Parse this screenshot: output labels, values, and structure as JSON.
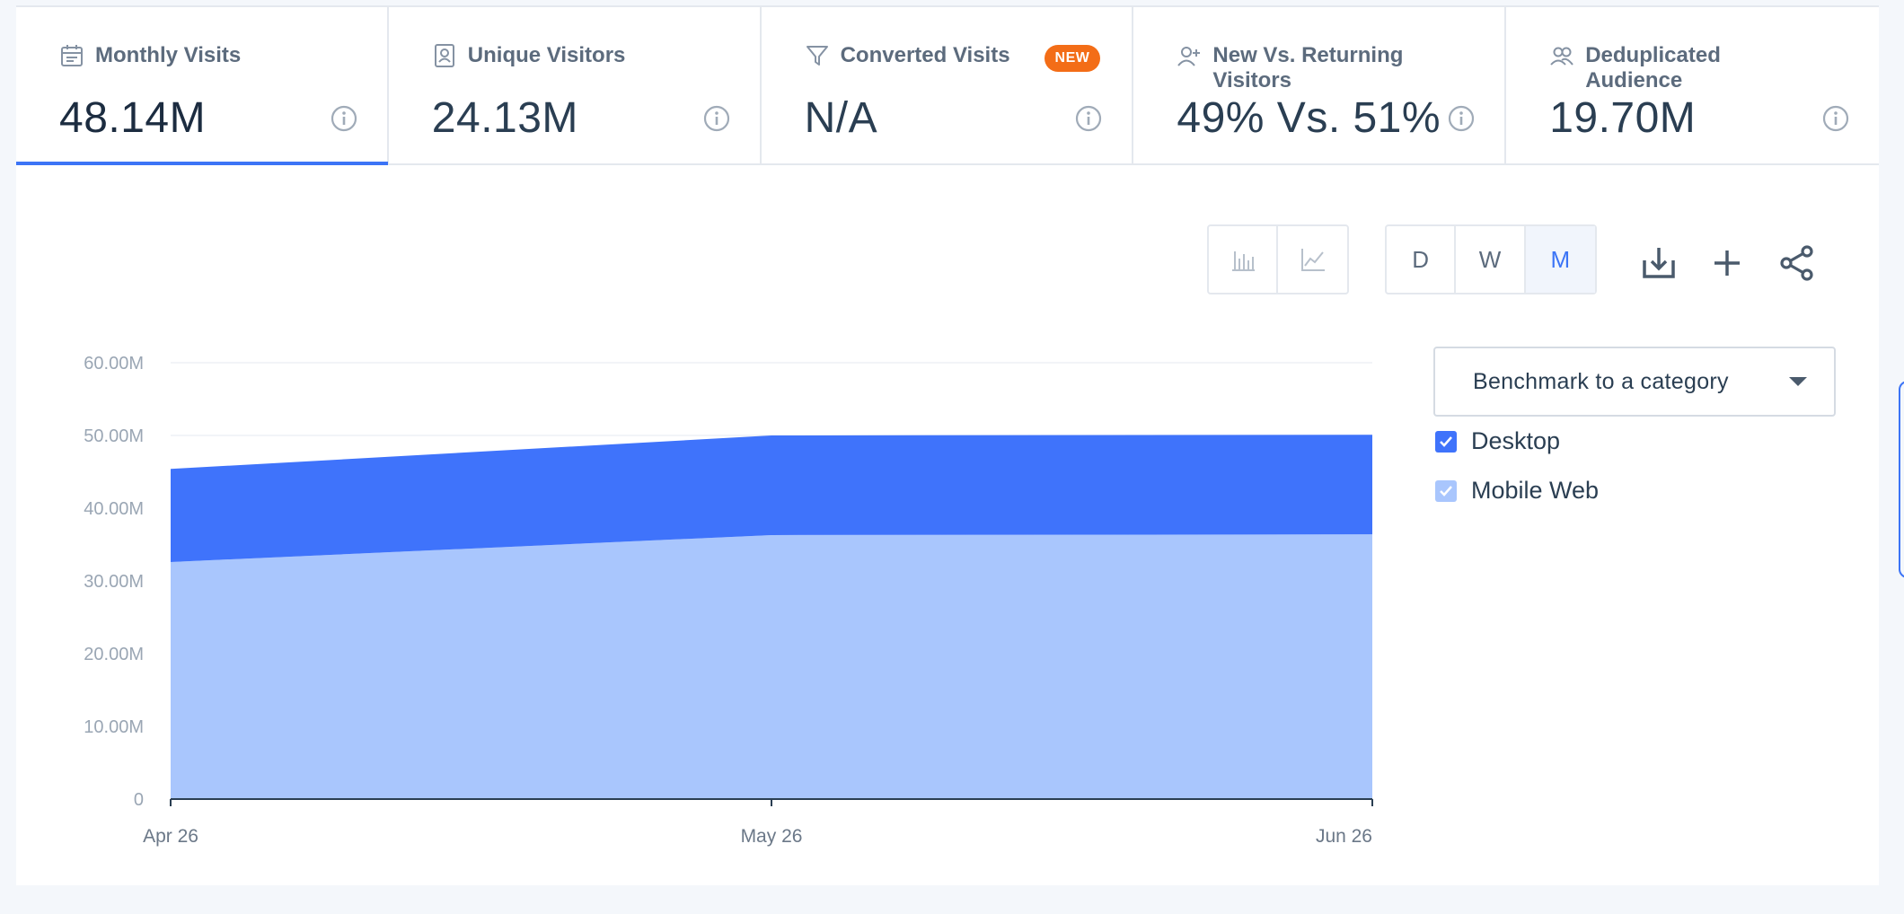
{
  "metrics": [
    {
      "label": "Monthly Visits",
      "value": "48.14M",
      "icon": "calendar-icon",
      "active": true
    },
    {
      "label": "Unique Visitors",
      "value": "24.13M",
      "icon": "id-badge-icon"
    },
    {
      "label": "Converted Visits",
      "value": "N/A",
      "icon": "funnel-icon",
      "badge": "NEW"
    },
    {
      "label": "New Vs. Returning Visitors",
      "value": "49% Vs. 51%",
      "icon": "user-plus-icon"
    },
    {
      "label": "Deduplicated Audience",
      "value": "19.70M",
      "icon": "users-icon"
    }
  ],
  "toolbar": {
    "chart_types": [
      "bar-chart-icon",
      "line-chart-icon"
    ],
    "granularity": [
      "D",
      "W",
      "M"
    ],
    "granularity_selected": "M",
    "actions": [
      "download-icon",
      "add-icon",
      "share-icon"
    ]
  },
  "benchmark": {
    "label": "Benchmark to a category"
  },
  "legend": [
    {
      "label": "Desktop",
      "color": "#3f73fb"
    },
    {
      "label": "Mobile Web",
      "color": "#a9c6fd"
    }
  ],
  "colors": {
    "accent": "#3c74f6",
    "badge": "#f36d17"
  },
  "chart_data": {
    "type": "area",
    "stacked": true,
    "x": [
      "Apr 26",
      "May 26",
      "Jun 26"
    ],
    "series": [
      {
        "name": "Mobile Web",
        "values": [
          32.6,
          36.3,
          36.4
        ]
      },
      {
        "name": "Desktop",
        "values": [
          12.8,
          13.7,
          13.7
        ]
      }
    ],
    "y_ticks": [
      "0",
      "10.00M",
      "20.00M",
      "30.00M",
      "40.00M",
      "50.00M",
      "60.00M"
    ],
    "ylim": [
      0,
      60
    ],
    "grid": true,
    "legend_position": "right"
  }
}
